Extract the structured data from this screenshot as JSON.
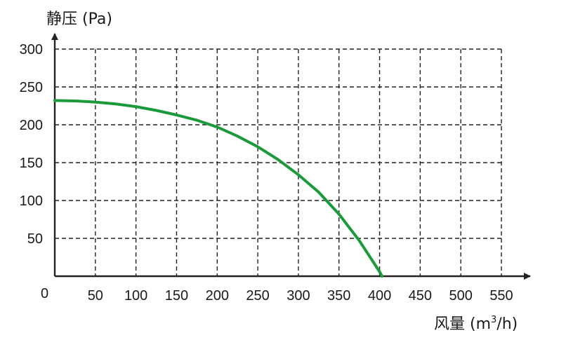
{
  "chart_data": {
    "type": "line",
    "title": "",
    "ylabel": "静压 (Pa)",
    "xlabel_main": "风量 (m",
    "xlabel_sup": "3",
    "xlabel_tail": "/h)",
    "origin_label": "0",
    "xlim": [
      0,
      550
    ],
    "ylim": [
      0,
      300
    ],
    "x_ticks": [
      50,
      100,
      150,
      200,
      250,
      300,
      350,
      400,
      450,
      500,
      550
    ],
    "y_ticks": [
      50,
      100,
      150,
      200,
      250,
      300
    ],
    "grid": true,
    "series": [
      {
        "color": "#1b9a3c",
        "x": [
          0,
          25,
          50,
          75,
          100,
          125,
          150,
          175,
          200,
          225,
          250,
          275,
          300,
          325,
          350,
          375,
          400,
          403
        ],
        "y": [
          232,
          231.5,
          230,
          227.5,
          224,
          219,
          213,
          206,
          197,
          185,
          171,
          154,
          134,
          111,
          82,
          47,
          6,
          0
        ]
      }
    ]
  }
}
